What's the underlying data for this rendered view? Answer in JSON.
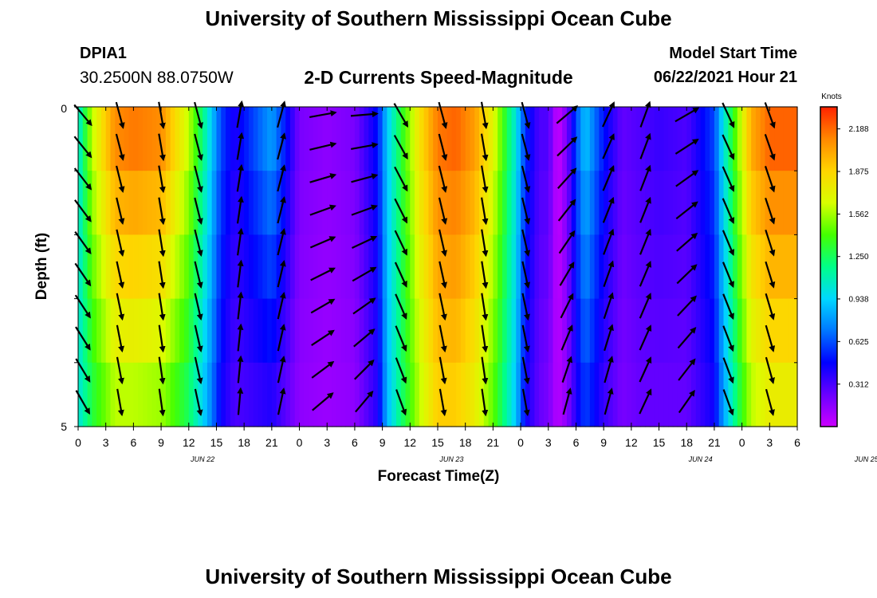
{
  "page": {
    "title": "University of Southern Mississippi Ocean Cube",
    "bottom_title": "University of Southern Mississippi Ocean Cube",
    "station_id": "DPIA1",
    "station_coords": "30.2500N  88.0750W",
    "chart_title": "2-D Currents Speed-Magnitude",
    "model_label": "Model Start Time",
    "model_time": "06/22/2021 Hour 21"
  },
  "chart_data": {
    "type": "heatmap",
    "title": "2-D Currents Speed-Magnitude",
    "xlabel": "Forecast Time(Z)",
    "ylabel": "Depth (ft)",
    "y_ticks": [
      "0",
      "5"
    ],
    "ylim": [
      0,
      5
    ],
    "x_tick_labels": [
      "0",
      "3",
      "6",
      "9",
      "12",
      "15",
      "18",
      "21",
      "0",
      "3",
      "6",
      "9",
      "12",
      "15",
      "18",
      "21",
      "0",
      "3",
      "6",
      "9",
      "12",
      "15",
      "18",
      "21",
      "0",
      "3",
      "6"
    ],
    "date_labels": [
      {
        "text": "JUN 22",
        "tick_index": 4.5
      },
      {
        "text": "JUN 23",
        "tick_index": 13.5
      },
      {
        "text": "JUN 24",
        "tick_index": 22.5
      },
      {
        "text": "JUN 25",
        "tick_index": 28.5
      }
    ],
    "colorbar": {
      "unit": "Knots",
      "tick_labels": [
        "2.188",
        "1.875",
        "1.562",
        "1.250",
        "0.938",
        "0.625",
        "0.312"
      ],
      "min": 0.0,
      "max": 2.35,
      "colors": [
        "#cc00ff",
        "#6a00ff",
        "#0000ff",
        "#0077ff",
        "#00d8ff",
        "#00ff88",
        "#44ff00",
        "#d8ff00",
        "#ffd400",
        "#ff8800",
        "#ff2200"
      ]
    },
    "time_range_hours": [
      0,
      78
    ],
    "depth_layers": 5,
    "speed_keypoints_hours": [
      0,
      1.5,
      4,
      6,
      9,
      12,
      14,
      15.5,
      17,
      19,
      21,
      24,
      27,
      30,
      32.5,
      33.5,
      35,
      37,
      39,
      41,
      43,
      45,
      47.5,
      48.5,
      50,
      51,
      52,
      53,
      54,
      55,
      57,
      59,
      61,
      63,
      66,
      69,
      70,
      71.5,
      73,
      75,
      78
    ],
    "speed_keypoints_top": [
      1.0,
      1.6,
      2.1,
      2.15,
      2.1,
      1.6,
      1.05,
      0.6,
      0.4,
      0.6,
      0.8,
      0.2,
      0.15,
      0.2,
      0.5,
      0.9,
      1.3,
      1.8,
      2.15,
      2.2,
      2.05,
      1.7,
      1.0,
      0.55,
      0.3,
      0.3,
      0.0,
      0.2,
      0.6,
      0.9,
      0.5,
      0.25,
      0.3,
      0.35,
      0.3,
      0.6,
      1.0,
      1.5,
      2.0,
      2.2,
      2.2
    ],
    "speed_keypoints_bottom": [
      1.0,
      1.3,
      1.6,
      1.6,
      1.55,
      1.25,
      0.85,
      0.45,
      0.3,
      0.35,
      0.4,
      0.15,
      0.12,
      0.15,
      0.4,
      0.85,
      1.2,
      1.6,
      1.9,
      1.9,
      1.75,
      1.45,
      0.9,
      0.45,
      0.25,
      0.2,
      0.05,
      0.15,
      0.4,
      0.6,
      0.35,
      0.2,
      0.25,
      0.25,
      0.25,
      0.45,
      0.8,
      1.25,
      1.6,
      1.75,
      1.75
    ],
    "vector_hours": [
      0.5,
      4.5,
      9,
      13,
      17.5,
      22,
      26.5,
      31,
      35,
      39.5,
      44,
      48.5,
      53,
      57.5,
      61.5,
      66,
      70.5,
      75
    ],
    "vector_angles_deg": [
      -50,
      -75,
      -80,
      -75,
      80,
      75,
      10,
      5,
      -60,
      -75,
      -80,
      -75,
      40,
      65,
      70,
      30,
      -65,
      -70
    ],
    "vector_angles_deep_deg": [
      -60,
      -80,
      -82,
      -78,
      85,
      78,
      40,
      50,
      -70,
      -80,
      -82,
      -80,
      75,
      75,
      65,
      55,
      -70,
      -75
    ]
  }
}
